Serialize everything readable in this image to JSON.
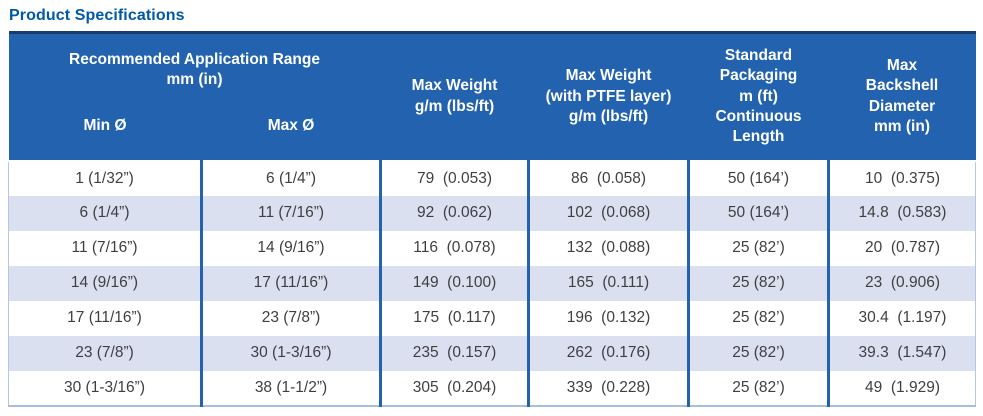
{
  "page_title": "Product Specifications",
  "colors": {
    "title_text": "#0059a8",
    "header_bg": "#2262ae",
    "header_top_border": "#173c6d",
    "header_text": "#ffffff",
    "row_alt_bg": "#dbe0f0",
    "cell_text": "#3f3f3f",
    "grid_line": "#2262ae",
    "outer_border": "#b6c5e0"
  },
  "table": {
    "group_header": {
      "title": "Recommended Application Range\nmm (in)",
      "sub_columns": [
        "Min Ø",
        "Max Ø"
      ]
    },
    "columns": [
      "Max Weight\ng/m (lbs/ft)",
      "Max Weight\n(with PTFE layer)\ng/m (lbs/ft)",
      "Standard\nPackaging\nm (ft)\nContinuous\nLength",
      "Max\nBackshell\nDiameter\nmm (in)"
    ],
    "rows": [
      [
        "1 (1/32”)",
        "6 (1/4”)",
        "79  (0.053)",
        "86  (0.058)",
        "50 (164’)",
        "10  (0.375)"
      ],
      [
        "6 (1/4”)",
        "11 (7/16”)",
        "92  (0.062)",
        "102  (0.068)",
        "50 (164’)",
        "14.8  (0.583)"
      ],
      [
        "11 (7/16”)",
        "14 (9/16”)",
        "116  (0.078)",
        "132  (0.088)",
        "25 (82’)",
        "20  (0.787)"
      ],
      [
        "14 (9/16”)",
        "17 (11/16”)",
        "149  (0.100)",
        "165  (0.111)",
        "25 (82’)",
        "23  (0.906)"
      ],
      [
        "17 (11/16”)",
        "23 (7/8”)",
        "175  (0.117)",
        "196  (0.132)",
        "25 (82’)",
        "30.4  (1.197)"
      ],
      [
        "23 (7/8”)",
        "30 (1-3/16”)",
        "235  (0.157)",
        "262  (0.176)",
        "25 (82’)",
        "39.3  (1.547)"
      ],
      [
        "30 (1-3/16”)",
        "38 (1-1/2”)",
        "305  (0.204)",
        "339  (0.228)",
        "25 (82’)",
        "49  (1.929)"
      ]
    ]
  }
}
